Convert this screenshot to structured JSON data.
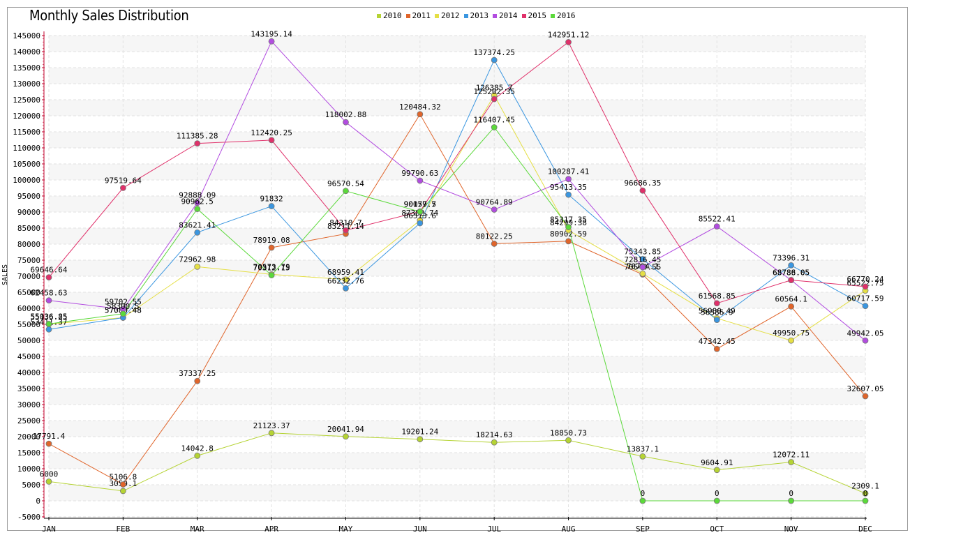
{
  "chart_data": {
    "type": "line",
    "title": "Monthly Sales Distribution",
    "ylabel": "SALES",
    "xlabel": "",
    "categories": [
      "JAN",
      "FEB",
      "MAR",
      "APR",
      "MAY",
      "JUN",
      "JUL",
      "AUG",
      "SEP",
      "OCT",
      "NOV",
      "DEC"
    ],
    "ylim": [
      -5000,
      145000
    ],
    "ytick_step": 5000,
    "grid": true,
    "legend_position": "top-center",
    "series": [
      {
        "name": "2010",
        "color": "#b5d334",
        "values": [
          6000,
          3059.1,
          14042.8,
          21123.37,
          20041.94,
          19201.24,
          18214.63,
          18850.73,
          13837.1,
          9604.91,
          12072.11,
          2309.1
        ]
      },
      {
        "name": "2011",
        "color": "#e0652b",
        "values": [
          17791.4,
          5106.8,
          37337.25,
          78919.08,
          83211.14,
          120484.32,
          80122.25,
          80902.59,
          70540.55,
          47342.45,
          60564.1,
          32607.05
        ]
      },
      {
        "name": "2012",
        "color": "#e5df45",
        "values": [
          55036.25,
          57080.48,
          72962.98,
          70573.79,
          68959.41,
          87382.74,
          126385.7,
          84299.38,
          70794.1,
          56900.49,
          49950.75,
          65522.75
        ]
      },
      {
        "name": "2013",
        "color": "#3a96e0",
        "values": [
          53411.37,
          57080.48,
          83621.41,
          91832,
          66232.76,
          86513.6,
          137374.25,
          95413.35,
          75343.85,
          56386.9,
          73396.31,
          60717.59
        ]
      },
      {
        "name": "2014",
        "color": "#b24ce0",
        "values": [
          62458.63,
          59702.55,
          92888.09,
          143195.14,
          118002.88,
          99790.63,
          90764.89,
          100287.41,
          72816.45,
          85522.41,
          68788.05,
          49942.05
        ]
      },
      {
        "name": "2015",
        "color": "#e0306a",
        "values": [
          69646.64,
          97519.64,
          111385.28,
          112420.25,
          84310.7,
          90157.7,
          125202.35,
          142951.12,
          96686.35,
          61568.85,
          68786.05,
          66770.24
        ]
      },
      {
        "name": "2016",
        "color": "#5bd93a",
        "values": [
          55136.85,
          58300.5,
          90962.5,
          70312.15,
          96570.54,
          90079.5,
          116407.45,
          85317.35,
          0,
          0,
          0,
          0
        ]
      }
    ]
  }
}
